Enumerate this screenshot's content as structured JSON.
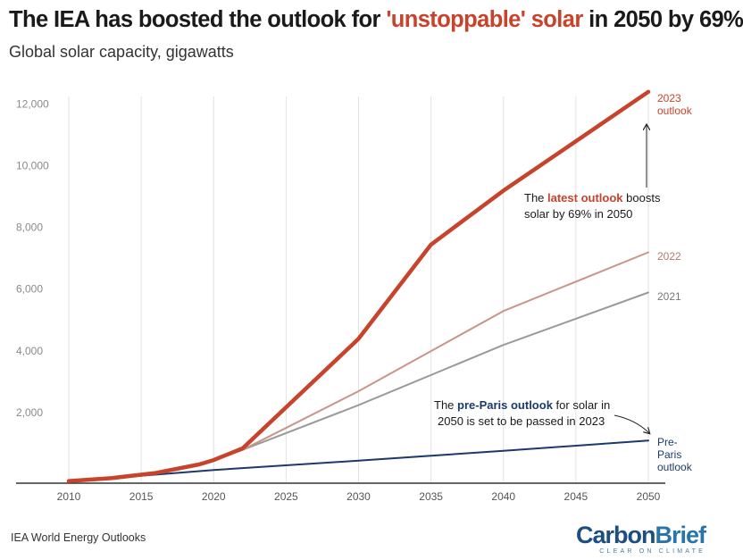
{
  "header": {
    "title_before": "The IEA has boosted the outlook for ",
    "title_highlight": "'unstoppable' solar",
    "title_after": " in 2050 by 69%",
    "subtitle": "Global solar capacity, gigawatts"
  },
  "chart_data": {
    "type": "line",
    "title": "The IEA has boosted the outlook for 'unstoppable' solar in 2050 by 69%",
    "subtitle": "Global solar capacity, gigawatts",
    "xlabel": "",
    "ylabel": "",
    "xlim": [
      2008,
      2050
    ],
    "ylim": [
      0,
      12500
    ],
    "x_ticks": [
      "2010",
      "2015",
      "2020",
      "2025",
      "2030",
      "2035",
      "2040",
      "2045",
      "2050"
    ],
    "y_ticks": [
      "2,000",
      "4,000",
      "6,000",
      "8,000",
      "10,000",
      "12,000"
    ],
    "x_tick_values": [
      2010,
      2015,
      2020,
      2025,
      2030,
      2035,
      2040,
      2045,
      2050
    ],
    "y_tick_values": [
      2000,
      4000,
      6000,
      8000,
      10000,
      12000
    ],
    "grid": "vertical",
    "series": [
      {
        "name": "Pre-Paris outlook",
        "label_lines": [
          "Pre-",
          "Paris",
          "outlook"
        ],
        "color": "#1b3a6b",
        "x": [
          2010,
          2013,
          2020,
          2030,
          2040,
          2050
        ],
        "values": [
          40,
          140,
          400,
          700,
          1020,
          1350
        ]
      },
      {
        "name": "2021",
        "label_lines": [
          "2021"
        ],
        "color": "#9a9a9a",
        "x": [
          2010,
          2013,
          2016,
          2019,
          2020,
          2022,
          2030,
          2040,
          2050
        ],
        "values": [
          40,
          140,
          300,
          580,
          720,
          1050,
          2500,
          4450,
          6150
        ]
      },
      {
        "name": "2022",
        "label_lines": [
          "2022"
        ],
        "color": "#c9958a",
        "x": [
          2010,
          2013,
          2016,
          2019,
          2020,
          2022,
          2030,
          2040,
          2050
        ],
        "values": [
          40,
          140,
          300,
          580,
          720,
          1050,
          2950,
          5550,
          7450
        ]
      },
      {
        "name": "2023 outlook",
        "label_lines": [
          "2023",
          "outlook"
        ],
        "color": "#c8432b",
        "x": [
          2010,
          2013,
          2016,
          2019,
          2020,
          2022,
          2030,
          2035,
          2040,
          2050
        ],
        "values": [
          40,
          140,
          300,
          580,
          720,
          1100,
          4650,
          7700,
          9450,
          12650
        ]
      }
    ],
    "annotations": {
      "latest": {
        "before": "The ",
        "highlight": "latest outlook",
        "after": " boosts",
        "line2": "solar by 69% in 2050"
      },
      "preparis": {
        "before": "The ",
        "highlight": "pre-Paris outlook",
        "after": " for solar in",
        "line2": "2050 is set to be passed in 2023"
      }
    }
  },
  "footer": {
    "source": "IEA World Energy Outlooks",
    "brand_part1": "Carbon",
    "brand_part2": "Brief",
    "brand_tagline": "CLEAR ON CLIMATE"
  }
}
